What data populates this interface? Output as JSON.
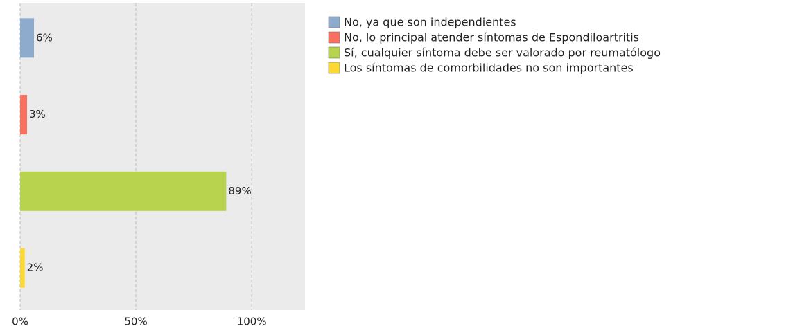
{
  "chart_data": {
    "type": "hbar",
    "categories": [
      "No, ya que son independientes",
      "No, lo principal atender síntomas de Espondiloartritis",
      "Sí, cualquier síntoma debe ser valorado por reumatólogo",
      "Los síntomas de comorbilidades no son importantes"
    ],
    "values": [
      6,
      3,
      89,
      2
    ],
    "value_labels": [
      "6%",
      "3%",
      "89%",
      "2%"
    ],
    "colors": [
      "#8eaacc",
      "#f8705f",
      "#b8d44f",
      "#fcd835"
    ],
    "xlim": [
      0,
      123
    ],
    "xticks": [
      {
        "value": 0,
        "label": "0%"
      },
      {
        "value": 50,
        "label": "50%"
      },
      {
        "value": 100,
        "label": "100%"
      }
    ],
    "grid": true,
    "legend": "right"
  }
}
